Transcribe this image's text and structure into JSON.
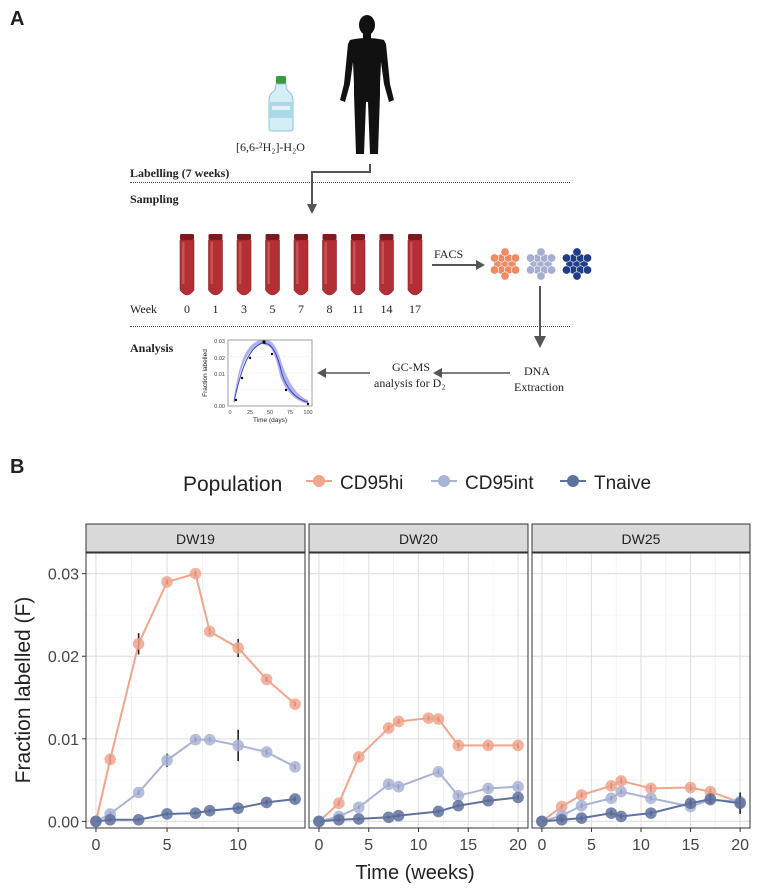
{
  "panel_a": {
    "letter": "A",
    "water_label": "[6,6-²H₂]-H₂O",
    "step_labelling": "Labelling (7 weeks)",
    "step_sampling": "Sampling",
    "step_analysis": "Analysis",
    "week_label": "Week",
    "weeks": [
      "0",
      "1",
      "3",
      "5",
      "7",
      "8",
      "11",
      "14",
      "17"
    ],
    "facs": "FACS",
    "dna": "DNA",
    "extraction": "Extraction",
    "gcms_line1": "GC-MS",
    "gcms_line2": "analysis for D₂",
    "mini_chart": {
      "ylabel": "Fraction labelled",
      "xlabel": "Time (days)",
      "yticks": [
        "0.03",
        "0.02",
        "0.01",
        "0.00"
      ],
      "xticks": [
        "0",
        "25",
        "50",
        "75",
        "100"
      ]
    }
  },
  "panel_b": {
    "letter": "B"
  },
  "chart_data": {
    "type": "line",
    "legend_title": "Population",
    "legend_position": "top",
    "series_names": [
      "CD95hi",
      "CD95int",
      "Tnaive"
    ],
    "colors": {
      "CD95hi": "#f0a58c",
      "CD95int": "#a9b3d6",
      "Tnaive": "#5f719f"
    },
    "ylabel": "Fraction labelled (F)",
    "xlabel": "Time (weeks)",
    "ylim": [
      -0.0008,
      0.0325
    ],
    "yticks": [
      0.0,
      0.01,
      0.02,
      0.03
    ],
    "ytick_labels": [
      "0.00",
      "0.01",
      "0.02",
      "0.03"
    ],
    "facets": [
      {
        "title": "DW19",
        "xlim": [
          -0.7,
          14.7
        ],
        "xticks": [
          0,
          5,
          10
        ],
        "series": [
          {
            "name": "CD95hi",
            "x": [
              0,
              1,
              3,
              5,
              7,
              8,
              10,
              12,
              14
            ],
            "y": [
              0.0,
              0.0075,
              0.0215,
              0.029,
              0.03,
              0.023,
              0.021,
              0.0172,
              0.0142
            ],
            "err": [
              0,
              0.0006,
              0.0013,
              0.0003,
              0.0003,
              0.0004,
              0.0011,
              0.0003,
              0.0003
            ]
          },
          {
            "name": "CD95int",
            "x": [
              0,
              1,
              3,
              5,
              7,
              8,
              10,
              12,
              14
            ],
            "y": [
              0.0,
              0.0009,
              0.0035,
              0.0074,
              0.0099,
              0.0099,
              0.0092,
              0.0084,
              0.0066
            ],
            "err": [
              0,
              0.0003,
              0.0003,
              0.0008,
              0.0003,
              0.0003,
              0.0019,
              0.0003,
              0.0003
            ]
          },
          {
            "name": "Tnaive",
            "x": [
              0,
              1,
              3,
              5,
              7,
              8,
              10,
              12,
              14
            ],
            "y": [
              0.0,
              0.0002,
              0.0002,
              0.0009,
              0.001,
              0.0013,
              0.0016,
              0.0023,
              0.0027
            ],
            "err": [
              0,
              0.0002,
              0.0002,
              0.0002,
              0.0002,
              0.0002,
              0.0002,
              0.0003,
              0.0003
            ]
          }
        ]
      },
      {
        "title": "DW20",
        "xlim": [
          -1,
          21
        ],
        "xticks": [
          0,
          5,
          10,
          15,
          20
        ],
        "series": [
          {
            "name": "CD95hi",
            "x": [
              0,
              2,
              4,
              7,
              8,
              11,
              12,
              14,
              17,
              20
            ],
            "y": [
              0.0,
              0.0022,
              0.0078,
              0.0113,
              0.0121,
              0.0125,
              0.0124,
              0.0092,
              0.0092,
              0.0092
            ],
            "err": [
              0,
              0.0003,
              0.0003,
              0.0003,
              0.0003,
              0.0003,
              0.0003,
              0.0003,
              0.0003,
              0.0003
            ]
          },
          {
            "name": "CD95int",
            "x": [
              0,
              2,
              4,
              7,
              8,
              12,
              14,
              17,
              20
            ],
            "y": [
              0.0,
              0.0006,
              0.0017,
              0.0045,
              0.0042,
              0.006,
              0.0031,
              0.004,
              0.0042
            ],
            "err": [
              0,
              0.0002,
              0.0002,
              0.0003,
              0.0003,
              0.0003,
              0.0003,
              0.0003,
              0.0003
            ]
          },
          {
            "name": "Tnaive",
            "x": [
              0,
              2,
              4,
              7,
              8,
              12,
              14,
              17,
              20
            ],
            "y": [
              0.0,
              0.0002,
              0.0003,
              0.0005,
              0.0007,
              0.0012,
              0.0019,
              0.0025,
              0.0029
            ],
            "err": [
              0,
              0.0002,
              0.0002,
              0.0002,
              0.0002,
              0.0002,
              0.0002,
              0.0002,
              0.0003
            ]
          }
        ]
      },
      {
        "title": "DW25",
        "xlim": [
          -1,
          21
        ],
        "xticks": [
          0,
          5,
          10,
          15,
          20
        ],
        "series": [
          {
            "name": "CD95hi",
            "x": [
              0,
              2,
              4,
              7,
              8,
              11,
              15,
              17,
              20
            ],
            "y": [
              0.0,
              0.0018,
              0.0032,
              0.0043,
              0.0049,
              0.004,
              0.0041,
              0.0036,
              0.0023
            ],
            "err": [
              0,
              0.0003,
              0.0003,
              0.0004,
              0.0004,
              0.0004,
              0.0004,
              0.0004,
              0.0004
            ]
          },
          {
            "name": "CD95int",
            "x": [
              0,
              2,
              4,
              7,
              8,
              11,
              15,
              17,
              20
            ],
            "y": [
              0.0,
              0.0007,
              0.0019,
              0.0028,
              0.0036,
              0.0028,
              0.0018,
              0.0026,
              0.0024
            ],
            "err": [
              0,
              0.0003,
              0.0003,
              0.0003,
              0.0003,
              0.0003,
              0.0003,
              0.0003,
              0.0003
            ]
          },
          {
            "name": "Tnaive",
            "x": [
              0,
              2,
              4,
              7,
              8,
              11,
              15,
              17,
              20
            ],
            "y": [
              0.0,
              0.0002,
              0.0004,
              0.001,
              0.0006,
              0.001,
              0.0022,
              0.0027,
              0.0022
            ],
            "err": [
              0,
              0.0003,
              0.0003,
              0.0003,
              0.0003,
              0.0003,
              0.0005,
              0.0006,
              0.0013
            ]
          }
        ]
      }
    ]
  }
}
